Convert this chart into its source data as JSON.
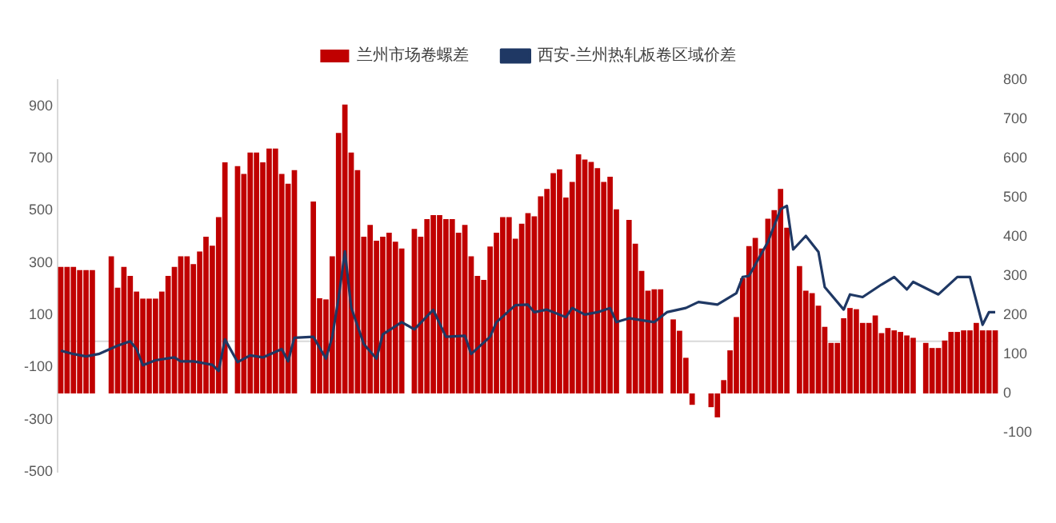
{
  "chart_data": {
    "type": "bar",
    "categories": [
      null,
      null,
      null,
      null,
      null,
      null,
      null,
      null,
      null,
      null,
      null,
      null,
      null,
      null,
      null,
      null,
      null,
      null,
      null,
      null,
      null,
      null,
      null,
      null,
      null,
      null,
      null,
      null,
      null,
      null,
      null,
      null,
      null,
      null,
      null,
      null,
      null,
      null,
      null,
      null,
      null,
      null,
      null,
      null,
      null,
      null,
      null,
      null,
      null,
      null,
      null,
      null,
      null,
      null,
      null,
      null,
      null,
      null,
      null,
      null,
      null,
      null,
      null,
      null,
      null,
      null,
      null,
      null,
      null,
      null,
      null,
      null,
      null,
      null,
      null,
      null,
      null,
      null,
      null,
      null,
      null,
      null,
      null,
      null,
      null,
      null,
      null,
      null,
      null,
      null,
      null,
      null,
      null,
      null,
      null,
      null,
      null,
      null,
      null,
      null,
      null,
      null,
      null,
      null,
      null,
      null,
      null,
      null,
      null,
      null,
      null,
      null,
      null,
      null,
      null,
      null,
      null,
      null,
      null,
      null,
      null,
      null,
      null,
      null,
      null,
      null,
      null,
      null,
      null,
      null,
      null,
      null,
      null,
      null,
      null,
      null,
      null,
      null,
      null,
      null,
      null,
      null,
      null,
      null,
      null,
      null,
      null,
      null,
      null
    ],
    "series": [
      {
        "name": "兰州市场卷螺差",
        "axis": "y2",
        "color": "#c00000",
        "values": [
          323,
          323,
          323,
          315,
          315,
          315,
          null,
          null,
          350,
          270,
          323,
          300,
          260,
          242,
          242,
          242,
          260,
          300,
          323,
          350,
          350,
          330,
          362,
          400,
          377,
          450,
          590,
          null,
          580,
          560,
          615,
          615,
          590,
          625,
          625,
          560,
          535,
          570,
          null,
          null,
          490,
          243,
          240,
          350,
          665,
          737,
          615,
          570,
          400,
          430,
          390,
          400,
          410,
          387,
          370,
          null,
          420,
          400,
          445,
          455,
          455,
          445,
          445,
          410,
          430,
          350,
          300,
          290,
          375,
          410,
          450,
          450,
          395,
          433,
          460,
          452,
          503,
          522,
          562,
          572,
          500,
          540,
          610,
          597,
          591,
          575,
          540,
          553,
          470,
          null,
          443,
          382,
          313,
          262,
          266,
          266,
          null,
          189,
          160,
          91,
          -29,
          null,
          null,
          -35,
          -61,
          34,
          110,
          195,
          294,
          376,
          397,
          370,
          446,
          468,
          522,
          423,
          null,
          325,
          262,
          256,
          224,
          170,
          129,
          129,
          192,
          218,
          215,
          180,
          180,
          199,
          154,
          167,
          161,
          157,
          148,
          142,
          null,
          129,
          116,
          116,
          135,
          157,
          157,
          161,
          161,
          180,
          161,
          161,
          161
        ]
      },
      {
        "name": "西安-兰州热轧板卷区域价差",
        "type": "line",
        "axis": "y",
        "color": "#1f3864",
        "values": [
          -36,
          null,
          -49,
          null,
          -58,
          null,
          -49,
          null,
          null,
          -17,
          null,
          0,
          -30,
          -92,
          null,
          -73,
          null,
          null,
          -62,
          -77,
          null,
          -77,
          null,
          null,
          -90,
          -114,
          7,
          null,
          -80,
          null,
          -54,
          null,
          -62,
          null,
          null,
          -30,
          -77,
          13,
          null,
          null,
          17,
          null,
          -67,
          17,
          166,
          344,
          129,
          null,
          -11,
          null,
          -67,
          26,
          null,
          null,
          73,
          null,
          45,
          null,
          null,
          120,
          null,
          17,
          null,
          null,
          21,
          -49,
          null,
          null,
          17,
          73,
          null,
          null,
          138,
          null,
          140,
          111,
          null,
          121,
          null,
          null,
          92,
          127,
          null,
          102,
          null,
          111,
          null,
          127,
          73,
          null,
          88,
          null,
          null,
          null,
          73,
          null,
          111,
          null,
          null,
          127,
          null,
          150,
          null,
          null,
          140,
          null,
          null,
          184,
          246,
          250,
          null,
          null,
          380,
          null,
          505,
          518,
          351,
          null,
          403,
          null,
          342,
          207,
          null,
          null,
          121,
          179,
          null,
          169,
          null,
          null,
          217,
          null,
          246,
          null,
          198,
          227,
          null,
          null,
          null,
          179,
          null,
          null,
          246,
          null,
          246,
          null,
          63,
          111,
          111
        ]
      }
    ],
    "ylim": [
      -500,
      1000
    ],
    "yticks": [
      -500,
      -300,
      -100,
      100,
      300,
      500,
      700,
      900
    ],
    "y2lim": [
      -200,
      800
    ],
    "y2ticks": [
      -100,
      0,
      100,
      200,
      300,
      400,
      500,
      600,
      700,
      800
    ],
    "ref_lines": [
      {
        "axis": "y",
        "value": 0,
        "color": "#d9d9d9"
      }
    ],
    "grid": false,
    "legend": "top",
    "marker": "none",
    "line_style": "solid"
  }
}
